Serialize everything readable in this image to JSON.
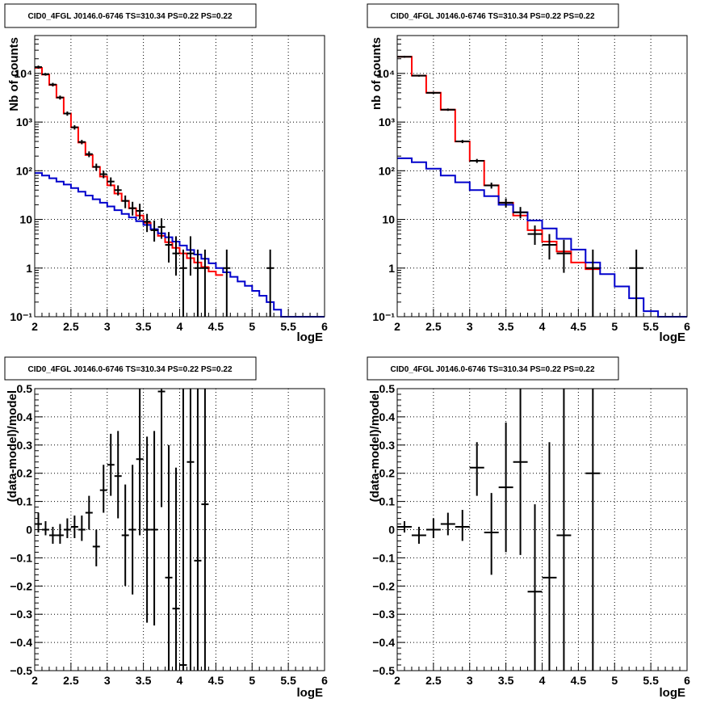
{
  "chart_data": [
    {
      "type": "histogram-log",
      "title": "CID0_4FGL J0146.0-6746 TS=310.34 PS=0.22 PS=0.22",
      "xlabel": "logE",
      "ylabel": "Nb of counts",
      "xlim": [
        2,
        6
      ],
      "ylim": [
        0.1,
        60000
      ],
      "ylog": true,
      "xticks": [
        "2",
        "2.5",
        "3",
        "3.5",
        "4",
        "4.5",
        "5",
        "5.5",
        "6"
      ],
      "yticks": [
        {
          "v": 0.1,
          "label": "10⁻¹"
        },
        {
          "v": 1,
          "label": "1"
        },
        {
          "v": 10,
          "label": "10"
        },
        {
          "v": 100,
          "label": "10²"
        },
        {
          "v": 1000,
          "label": "10³"
        },
        {
          "v": 10000,
          "label": "10⁴"
        }
      ],
      "grid": true,
      "bin_edges": [
        2.0,
        2.1,
        2.2,
        2.3,
        2.4,
        2.5,
        2.6,
        2.7,
        2.8,
        2.9,
        3.0,
        3.1,
        3.2,
        3.3,
        3.4,
        3.5,
        3.6,
        3.7,
        3.8,
        3.9,
        4.0,
        4.1,
        4.2,
        4.3,
        4.4,
        4.5,
        4.6,
        4.7,
        4.8,
        4.9,
        5.0,
        5.1,
        5.2,
        5.3,
        5.4,
        5.5,
        5.6,
        5.7,
        5.8,
        5.9,
        6.0
      ],
      "series": [
        {
          "color": "#ff0000",
          "style": "step",
          "values": [
            13000,
            9500,
            5800,
            3200,
            1500,
            780,
            380,
            210,
            120,
            76,
            50,
            34,
            24,
            17,
            12,
            8.5,
            6.2,
            4.6,
            3.4,
            2.6,
            2.0,
            1.6,
            1.3,
            1.05,
            0.85,
            0.72,
            null,
            null,
            null,
            null,
            null,
            null,
            null,
            null,
            null,
            null,
            null,
            null,
            null,
            null
          ]
        },
        {
          "color": "#0000cc",
          "style": "step",
          "values": [
            90,
            80,
            70,
            60,
            52,
            44,
            37,
            31,
            26,
            22,
            18.5,
            15.5,
            13,
            11,
            9.2,
            7.7,
            6.3,
            5.2,
            4.3,
            3.5,
            2.9,
            2.35,
            1.9,
            1.55,
            1.25,
            1.0,
            0.82,
            0.66,
            0.53,
            0.43,
            0.34,
            0.27,
            0.2,
            0.14,
            0.1,
            0.1,
            0.1,
            0.1,
            0.1,
            0.1
          ]
        }
      ],
      "data_points": [
        {
          "x": 2.05,
          "y": 13500,
          "lo": 12500,
          "hi": 14500
        },
        {
          "x": 2.15,
          "y": 9600,
          "lo": 9000,
          "hi": 10200
        },
        {
          "x": 2.25,
          "y": 5900,
          "lo": 5400,
          "hi": 6400
        },
        {
          "x": 2.35,
          "y": 3200,
          "lo": 2900,
          "hi": 3500
        },
        {
          "x": 2.45,
          "y": 1500,
          "lo": 1350,
          "hi": 1650
        },
        {
          "x": 2.55,
          "y": 780,
          "lo": 700,
          "hi": 860
        },
        {
          "x": 2.65,
          "y": 390,
          "lo": 350,
          "hi": 430
        },
        {
          "x": 2.75,
          "y": 220,
          "lo": 190,
          "hi": 250
        },
        {
          "x": 2.85,
          "y": 120,
          "lo": 100,
          "hi": 140
        },
        {
          "x": 2.95,
          "y": 85,
          "lo": 70,
          "hi": 100
        },
        {
          "x": 3.05,
          "y": 60,
          "lo": 48,
          "hi": 73
        },
        {
          "x": 3.15,
          "y": 40,
          "lo": 31,
          "hi": 50
        },
        {
          "x": 3.25,
          "y": 24,
          "lo": 17,
          "hi": 31
        },
        {
          "x": 3.35,
          "y": 17,
          "lo": 12,
          "hi": 23
        },
        {
          "x": 3.45,
          "y": 15,
          "lo": 10,
          "hi": 21
        },
        {
          "x": 3.55,
          "y": 9,
          "lo": 5.5,
          "hi": 13
        },
        {
          "x": 3.65,
          "y": 6,
          "lo": 3.5,
          "hi": 9.5
        },
        {
          "x": 3.75,
          "y": 7,
          "lo": 4.0,
          "hi": 10.5
        },
        {
          "x": 3.85,
          "y": 3,
          "lo": 1.3,
          "hi": 5.5
        },
        {
          "x": 3.95,
          "y": 2,
          "lo": 0.7,
          "hi": 4.5
        },
        {
          "x": 4.05,
          "y": 1,
          "lo": 0.1,
          "hi": 2.4
        },
        {
          "x": 4.15,
          "y": 2,
          "lo": 0.7,
          "hi": 4.5
        },
        {
          "x": 4.25,
          "y": 1,
          "lo": 0.1,
          "hi": 2.4
        },
        {
          "x": 4.35,
          "y": 1,
          "lo": 0.1,
          "hi": 2.4
        },
        {
          "x": 4.65,
          "y": 1,
          "lo": 0.1,
          "hi": 2.4
        },
        {
          "x": 5.25,
          "y": 1,
          "lo": 0.1,
          "hi": 2.4
        }
      ]
    },
    {
      "type": "histogram-log",
      "title": "CID0_4FGL J0146.0-6746 TS=310.34 PS=0.22 PS=0.22",
      "xlabel": "logE",
      "ylabel": "nb of counts",
      "xlim": [
        2,
        6
      ],
      "ylim": [
        0.1,
        60000
      ],
      "ylog": true,
      "xticks": [
        "2",
        "2.5",
        "3",
        "3.5",
        "4",
        "4.5",
        "5",
        "5.5",
        "6"
      ],
      "yticks": [
        {
          "v": 0.1,
          "label": "10⁻¹"
        },
        {
          "v": 1,
          "label": "1"
        },
        {
          "v": 10,
          "label": "10"
        },
        {
          "v": 100,
          "label": "10²"
        },
        {
          "v": 1000,
          "label": "10³"
        },
        {
          "v": 10000,
          "label": "10⁴"
        }
      ],
      "grid": true,
      "bin_edges": [
        2.0,
        2.2,
        2.4,
        2.6,
        2.8,
        3.0,
        3.2,
        3.4,
        3.6,
        3.8,
        4.0,
        4.2,
        4.4,
        4.6,
        4.8,
        5.0,
        5.2,
        5.4,
        5.6,
        5.8,
        6.0
      ],
      "series": [
        {
          "color": "#ff0000",
          "style": "step",
          "values": [
            22000,
            9000,
            4000,
            1800,
            400,
            160,
            50,
            22,
            12,
            6,
            3.5,
            2.2,
            1.3,
            0.95,
            null,
            null,
            null,
            null,
            null,
            null
          ]
        },
        {
          "color": "#0000cc",
          "style": "step",
          "values": [
            180,
            150,
            110,
            80,
            58,
            40,
            30,
            20,
            14,
            9.5,
            6.5,
            4.0,
            2.4,
            1.3,
            0.75,
            0.42,
            0.24,
            0.13,
            0.1,
            0.1
          ]
        }
      ],
      "data_points": [
        {
          "x": 2.1,
          "y": 22000,
          "lo": 21000,
          "hi": 23000
        },
        {
          "x": 2.3,
          "y": 9000,
          "lo": 8600,
          "hi": 9400
        },
        {
          "x": 2.5,
          "y": 4000,
          "lo": 3800,
          "hi": 4200
        },
        {
          "x": 2.7,
          "y": 1800,
          "lo": 1700,
          "hi": 1900
        },
        {
          "x": 2.9,
          "y": 400,
          "lo": 370,
          "hi": 430
        },
        {
          "x": 3.1,
          "y": 160,
          "lo": 145,
          "hi": 175
        },
        {
          "x": 3.3,
          "y": 50,
          "lo": 43,
          "hi": 57
        },
        {
          "x": 3.5,
          "y": 22,
          "lo": 17.5,
          "hi": 27
        },
        {
          "x": 3.7,
          "y": 14,
          "lo": 10.5,
          "hi": 18
        },
        {
          "x": 3.9,
          "y": 5,
          "lo": 3.0,
          "hi": 7.5
        },
        {
          "x": 4.1,
          "y": 3,
          "lo": 1.5,
          "hi": 5
        },
        {
          "x": 4.3,
          "y": 2,
          "lo": 0.8,
          "hi": 3.8
        },
        {
          "x": 4.7,
          "y": 1,
          "lo": 0.1,
          "hi": 2.4
        },
        {
          "x": 5.3,
          "y": 1,
          "lo": 0.1,
          "hi": 2.4
        }
      ]
    },
    {
      "type": "residuals",
      "title": "CID0_4FGL J0146.0-6746 TS=310.34 PS=0.22 PS=0.22",
      "xlabel": "logE",
      "ylabel": "(data-model)/model",
      "xlim": [
        2,
        6
      ],
      "ylim": [
        -0.5,
        0.5
      ],
      "xticks": [
        "2",
        "2.5",
        "3",
        "3.5",
        "4",
        "4.5",
        "5",
        "5.5",
        "6"
      ],
      "yticks": [
        {
          "v": -0.5,
          "label": "−0.5"
        },
        {
          "v": -0.4,
          "label": "−0.4"
        },
        {
          "v": -0.3,
          "label": "−0.3"
        },
        {
          "v": -0.2,
          "label": "−0.2"
        },
        {
          "v": -0.1,
          "label": "−0.1"
        },
        {
          "v": 0,
          "label": "0"
        },
        {
          "v": 0.1,
          "label": "0.1"
        },
        {
          "v": 0.2,
          "label": "0.2"
        },
        {
          "v": 0.3,
          "label": "0.3"
        },
        {
          "v": 0.4,
          "label": "0.4"
        },
        {
          "v": 0.5,
          "label": "0.5"
        }
      ],
      "grid": true,
      "bin_width": 0.1,
      "data_points": [
        {
          "x": 2.05,
          "y": 0.02,
          "lo": -0.01,
          "hi": 0.06
        },
        {
          "x": 2.15,
          "y": 0.0,
          "lo": -0.02,
          "hi": 0.03
        },
        {
          "x": 2.25,
          "y": -0.02,
          "lo": -0.05,
          "hi": 0.01
        },
        {
          "x": 2.35,
          "y": -0.02,
          "lo": -0.05,
          "hi": 0.02
        },
        {
          "x": 2.45,
          "y": 0.0,
          "lo": -0.03,
          "hi": 0.04
        },
        {
          "x": 2.55,
          "y": 0.01,
          "lo": -0.03,
          "hi": 0.05
        },
        {
          "x": 2.65,
          "y": 0.0,
          "lo": -0.04,
          "hi": 0.05
        },
        {
          "x": 2.75,
          "y": 0.06,
          "lo": 0.0,
          "hi": 0.12
        },
        {
          "x": 2.85,
          "y": -0.06,
          "lo": -0.13,
          "hi": 0.0
        },
        {
          "x": 2.95,
          "y": 0.14,
          "lo": 0.06,
          "hi": 0.23
        },
        {
          "x": 3.05,
          "y": 0.23,
          "lo": 0.12,
          "hi": 0.34
        },
        {
          "x": 3.15,
          "y": 0.19,
          "lo": 0.04,
          "hi": 0.35
        },
        {
          "x": 3.25,
          "y": -0.02,
          "lo": -0.2,
          "hi": 0.16
        },
        {
          "x": 3.35,
          "y": 0.0,
          "lo": -0.23,
          "hi": 0.23
        },
        {
          "x": 3.45,
          "y": 0.25,
          "lo": -0.02,
          "hi": 0.5
        },
        {
          "x": 3.55,
          "y": 0.0,
          "lo": -0.33,
          "hi": 0.33
        },
        {
          "x": 3.65,
          "y": 0.0,
          "lo": -0.34,
          "hi": 0.35
        },
        {
          "x": 3.75,
          "y": 0.49,
          "lo": 0.08,
          "hi": 0.5
        },
        {
          "x": 3.85,
          "y": -0.17,
          "lo": -0.5,
          "hi": 0.3
        },
        {
          "x": 3.95,
          "y": -0.28,
          "lo": -0.5,
          "hi": 0.22
        },
        {
          "x": 4.05,
          "y": -0.48,
          "lo": -0.5,
          "hi": 0.5
        },
        {
          "x": 4.15,
          "y": 0.24,
          "lo": -0.5,
          "hi": 0.5
        },
        {
          "x": 4.25,
          "y": -0.11,
          "lo": -0.5,
          "hi": 0.5
        },
        {
          "x": 4.35,
          "y": 0.09,
          "lo": -0.5,
          "hi": 0.5
        }
      ]
    },
    {
      "type": "residuals",
      "title": "CID0_4FGL J0146.0-6746 TS=310.34 PS=0.22 PS=0.22",
      "xlabel": "logE",
      "ylabel": "(data-model)/model",
      "xlim": [
        2,
        6
      ],
      "ylim": [
        -0.5,
        0.5
      ],
      "xticks": [
        "2",
        "2.5",
        "3",
        "3.5",
        "4",
        "4.5",
        "5",
        "5.5",
        "6"
      ],
      "yticks": [
        {
          "v": -0.5,
          "label": "−0.5"
        },
        {
          "v": -0.4,
          "label": "−0.4"
        },
        {
          "v": -0.3,
          "label": "−0.3"
        },
        {
          "v": -0.2,
          "label": "−0.2"
        },
        {
          "v": -0.1,
          "label": "−0.1"
        },
        {
          "v": 0,
          "label": "0"
        },
        {
          "v": 0.1,
          "label": "0.1"
        },
        {
          "v": 0.2,
          "label": "0.2"
        },
        {
          "v": 0.3,
          "label": "0.3"
        },
        {
          "v": 0.4,
          "label": "0.4"
        },
        {
          "v": 0.5,
          "label": "0.5"
        }
      ],
      "grid": true,
      "bin_width": 0.2,
      "data_points": [
        {
          "x": 2.1,
          "y": 0.01,
          "lo": -0.01,
          "hi": 0.03
        },
        {
          "x": 2.3,
          "y": -0.02,
          "lo": -0.05,
          "hi": 0.01
        },
        {
          "x": 2.5,
          "y": 0.0,
          "lo": -0.03,
          "hi": 0.04
        },
        {
          "x": 2.7,
          "y": 0.02,
          "lo": -0.02,
          "hi": 0.06
        },
        {
          "x": 2.9,
          "y": 0.01,
          "lo": -0.04,
          "hi": 0.07
        },
        {
          "x": 3.1,
          "y": 0.22,
          "lo": 0.12,
          "hi": 0.31
        },
        {
          "x": 3.3,
          "y": -0.01,
          "lo": -0.16,
          "hi": 0.13
        },
        {
          "x": 3.5,
          "y": 0.15,
          "lo": -0.08,
          "hi": 0.38
        },
        {
          "x": 3.7,
          "y": 0.24,
          "lo": -0.09,
          "hi": 0.5
        },
        {
          "x": 3.9,
          "y": -0.22,
          "lo": -0.5,
          "hi": 0.09
        },
        {
          "x": 4.1,
          "y": -0.17,
          "lo": -0.5,
          "hi": 0.31
        },
        {
          "x": 4.3,
          "y": -0.02,
          "lo": -0.5,
          "hi": 0.5
        },
        {
          "x": 4.7,
          "y": 0.2,
          "lo": -0.5,
          "hi": 0.5
        }
      ]
    }
  ]
}
